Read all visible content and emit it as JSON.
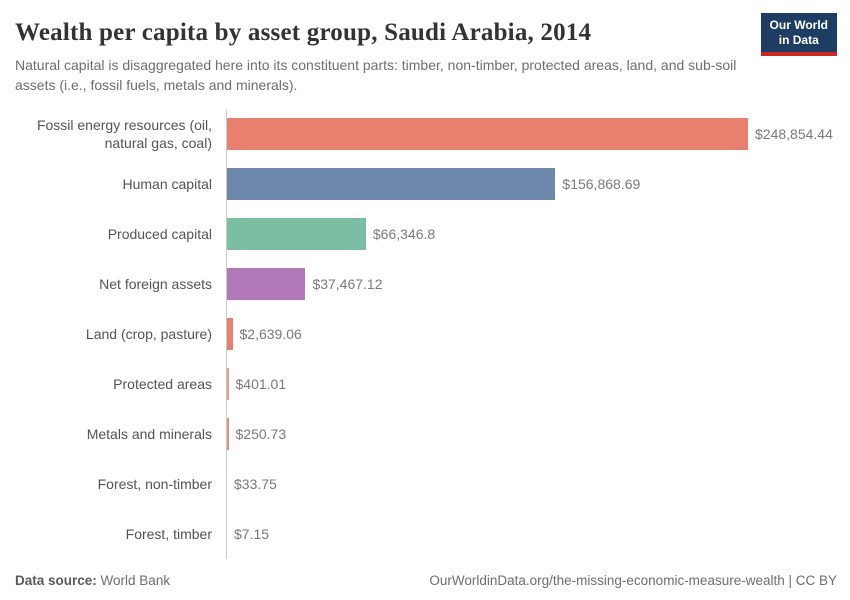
{
  "header": {
    "title": "Wealth per capita by asset group, Saudi Arabia, 2014",
    "subtitle": "Natural capital is disaggregated here into its constituent parts: timber, non-timber, protected areas, land, and sub-soil assets (i.e., fossil fuels, metals and minerals).",
    "logo": {
      "line1": "Our World",
      "line2": "in Data",
      "bg_color": "#1d3d63",
      "accent_color": "#cf2820"
    }
  },
  "chart_data": {
    "type": "bar",
    "orientation": "horizontal",
    "title": "Wealth per capita by asset group, Saudi Arabia, 2014",
    "categories": [
      "Fossil energy resources (oil, natural gas, coal)",
      "Human capital",
      "Produced capital",
      "Net foreign assets",
      "Land (crop, pasture)",
      "Protected areas",
      "Metals and minerals",
      "Forest, non-timber",
      "Forest, timber"
    ],
    "values": [
      248854.44,
      156868.69,
      66346.8,
      37467.12,
      2639.06,
      401.01,
      250.73,
      33.75,
      7.15
    ],
    "value_labels": [
      "$248,854.44",
      "$156,868.69",
      "$66,346.8",
      "$37,467.12",
      "$2,639.06",
      "$401.01",
      "$250.73",
      "$33.75",
      "$7.15"
    ],
    "bar_colors": [
      "#E8806F",
      "#6D87AD",
      "#7CBEA4",
      "#B279B8",
      "#E8806F",
      "#F0998A",
      "#EC8B7B",
      "#E8806F",
      "#E8806F"
    ],
    "xlim": [
      0,
      248854.44
    ],
    "unit": "$",
    "grid": false,
    "legend": "none",
    "axis_line_color": "#cbcbcb"
  },
  "footer": {
    "datasource_label": "Data source:",
    "datasource_value": "World Bank",
    "link": "OurWorldinData.org/the-missing-economic-measure-wealth | CC BY"
  }
}
